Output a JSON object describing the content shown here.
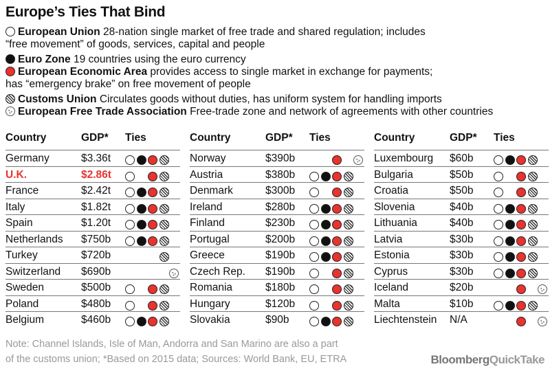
{
  "chart_data": {
    "type": "table",
    "title": "Europe’s Ties That Bind",
    "legend": [
      {
        "key": "eu",
        "name": "European Union",
        "desc": "28-nation single market of free trade and shared regulation; includes",
        "desc2": "“free movement” of goods, services, capital and people",
        "color": "#ffffff"
      },
      {
        "key": "ez",
        "name": "Euro Zone",
        "desc": "19 countries using the euro currency",
        "color": "#111111"
      },
      {
        "key": "eea",
        "name": "European Economic Area",
        "desc": "provides access to single market in exchange for payments;",
        "desc2": "has “emergency brake” on free movement of people",
        "color": "#e8332f"
      },
      {
        "key": "cu",
        "name": "Customs Union",
        "desc": "Circulates goods without duties, has uniform system for handling imports",
        "color": "striped"
      },
      {
        "key": "efta",
        "name": "European Free Trade Association",
        "desc": "Free-trade zone and network of agreements with other countries",
        "color": "dotted"
      }
    ],
    "columns": [
      "Country",
      "GDP*",
      "Ties"
    ],
    "tie_order": [
      "eu",
      "ez",
      "eea",
      "cu",
      "efta"
    ],
    "rows": [
      {
        "country": "Germany",
        "gdp": "$3.36t",
        "ties": [
          1,
          1,
          1,
          1,
          0
        ]
      },
      {
        "country": "U.K.",
        "gdp": "$2.86t",
        "ties": [
          1,
          0,
          1,
          1,
          0
        ],
        "highlight": true
      },
      {
        "country": "France",
        "gdp": "$2.42t",
        "ties": [
          1,
          1,
          1,
          1,
          0
        ]
      },
      {
        "country": "Italy",
        "gdp": "$1.82t",
        "ties": [
          1,
          1,
          1,
          1,
          0
        ]
      },
      {
        "country": "Spain",
        "gdp": "$1.20t",
        "ties": [
          1,
          1,
          1,
          1,
          0
        ]
      },
      {
        "country": "Netherlands",
        "gdp": "$750b",
        "ties": [
          1,
          1,
          1,
          1,
          0
        ]
      },
      {
        "country": "Turkey",
        "gdp": "$720b",
        "ties": [
          0,
          0,
          0,
          1,
          0
        ]
      },
      {
        "country": "Switzerland",
        "gdp": "$690b",
        "ties": [
          0,
          0,
          0,
          0,
          1
        ]
      },
      {
        "country": "Sweden",
        "gdp": "$500b",
        "ties": [
          1,
          0,
          1,
          1,
          0
        ]
      },
      {
        "country": "Poland",
        "gdp": "$480b",
        "ties": [
          1,
          0,
          1,
          1,
          0
        ]
      },
      {
        "country": "Belgium",
        "gdp": "$460b",
        "ties": [
          1,
          1,
          1,
          1,
          0
        ]
      },
      {
        "country": "Norway",
        "gdp": "$390b",
        "ties": [
          0,
          0,
          1,
          0,
          1
        ]
      },
      {
        "country": "Austria",
        "gdp": "$380b",
        "ties": [
          1,
          1,
          1,
          1,
          0
        ]
      },
      {
        "country": "Denmark",
        "gdp": "$300b",
        "ties": [
          1,
          0,
          1,
          1,
          0
        ]
      },
      {
        "country": "Ireland",
        "gdp": "$280b",
        "ties": [
          1,
          1,
          1,
          1,
          0
        ]
      },
      {
        "country": "Finland",
        "gdp": "$230b",
        "ties": [
          1,
          1,
          1,
          1,
          0
        ]
      },
      {
        "country": "Portugal",
        "gdp": "$200b",
        "ties": [
          1,
          1,
          1,
          1,
          0
        ]
      },
      {
        "country": "Greece",
        "gdp": "$190b",
        "ties": [
          1,
          1,
          1,
          1,
          0
        ]
      },
      {
        "country": "Czech Rep.",
        "gdp": "$190b",
        "ties": [
          1,
          0,
          1,
          1,
          0
        ]
      },
      {
        "country": "Romania",
        "gdp": "$180b",
        "ties": [
          1,
          0,
          1,
          1,
          0
        ]
      },
      {
        "country": "Hungary",
        "gdp": "$120b",
        "ties": [
          1,
          0,
          1,
          1,
          0
        ]
      },
      {
        "country": "Slovakia",
        "gdp": "$90b",
        "ties": [
          1,
          1,
          1,
          1,
          0
        ]
      },
      {
        "country": "Luxembourg",
        "gdp": "$60b",
        "ties": [
          1,
          1,
          1,
          1,
          0
        ]
      },
      {
        "country": "Bulgaria",
        "gdp": "$50b",
        "ties": [
          1,
          0,
          1,
          1,
          0
        ]
      },
      {
        "country": "Croatia",
        "gdp": "$50b",
        "ties": [
          1,
          0,
          1,
          1,
          0
        ]
      },
      {
        "country": "Slovenia",
        "gdp": "$40b",
        "ties": [
          1,
          1,
          1,
          1,
          0
        ]
      },
      {
        "country": "Lithuania",
        "gdp": "$40b",
        "ties": [
          1,
          1,
          1,
          1,
          0
        ]
      },
      {
        "country": "Latvia",
        "gdp": "$30b",
        "ties": [
          1,
          1,
          1,
          1,
          0
        ]
      },
      {
        "country": "Estonia",
        "gdp": "$30b",
        "ties": [
          1,
          1,
          1,
          1,
          0
        ]
      },
      {
        "country": "Cyprus",
        "gdp": "$30b",
        "ties": [
          1,
          1,
          1,
          1,
          0
        ]
      },
      {
        "country": "Iceland",
        "gdp": "$20b",
        "ties": [
          0,
          0,
          1,
          0,
          1
        ]
      },
      {
        "country": "Malta",
        "gdp": "$10b",
        "ties": [
          1,
          1,
          1,
          1,
          0
        ]
      },
      {
        "country": "Liechtenstein",
        "gdp": "N/A",
        "ties": [
          0,
          0,
          1,
          0,
          1
        ]
      }
    ],
    "note": [
      "Note: Channel Islands, Isle of Man, Andorra and San Marino are also a part",
      "of the customs union; *Based on 2015 data; Sources: World Bank, EU, ETRA"
    ]
  },
  "brand": {
    "a": "Bloomberg",
    "b": "QuickTake"
  }
}
